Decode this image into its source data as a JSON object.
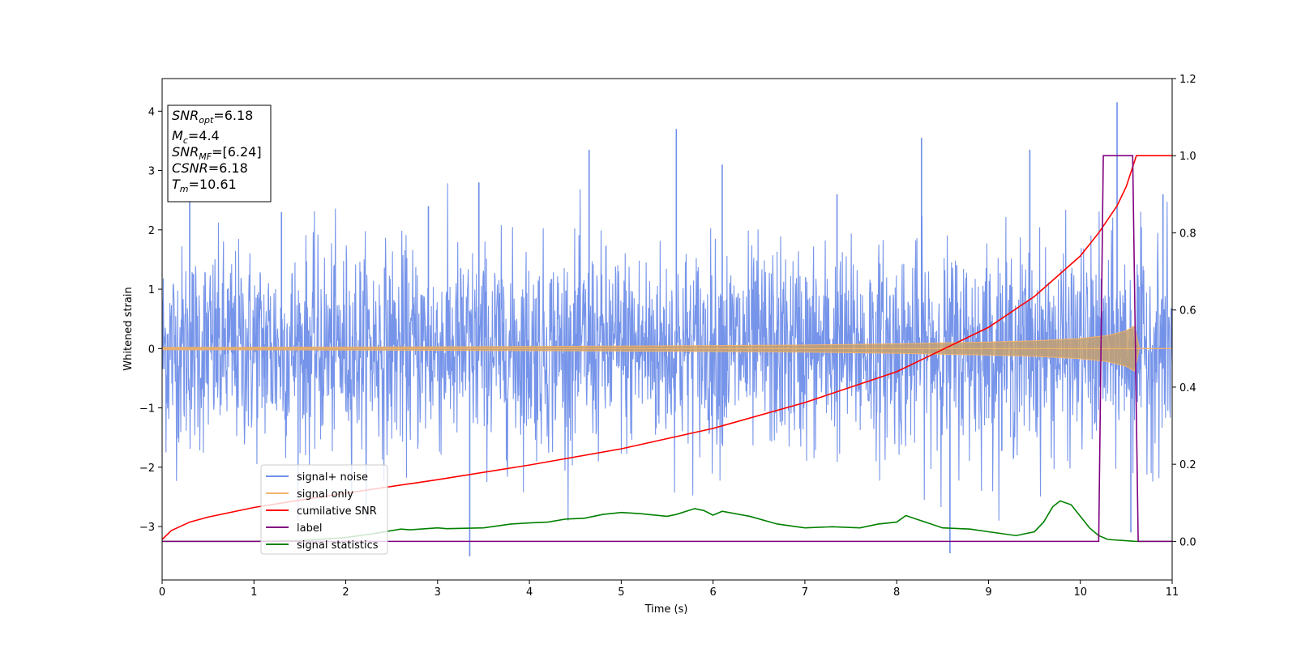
{
  "chart_data": {
    "type": "line",
    "xlabel": "Time (s)",
    "ylabel": "Whitened strain",
    "xlim": [
      0,
      11
    ],
    "ylim_left": [
      -3.9,
      4.55
    ],
    "ylim_right": [
      -0.1,
      1.2
    ],
    "x_ticks": [
      "0",
      "1",
      "2",
      "3",
      "4",
      "5",
      "6",
      "7",
      "8",
      "9",
      "10",
      "11"
    ],
    "y_left_ticks": [
      {
        "value": 4,
        "label": "4"
      },
      {
        "value": 3,
        "label": "3"
      },
      {
        "value": 2,
        "label": "2"
      },
      {
        "value": 1,
        "label": "1"
      },
      {
        "value": 0,
        "label": "0"
      },
      {
        "value": -1,
        "label": "−1"
      },
      {
        "value": -2,
        "label": "−2"
      },
      {
        "value": -3,
        "label": "−3"
      }
    ],
    "y_right_ticks": [
      {
        "value": 1.2,
        "label": "1.2"
      },
      {
        "value": 1.0,
        "label": "1.0"
      },
      {
        "value": 0.8,
        "label": "0.8"
      },
      {
        "value": 0.6,
        "label": "0.6"
      },
      {
        "value": 0.4,
        "label": "0.4"
      },
      {
        "value": 0.2,
        "label": "0.2"
      },
      {
        "value": 0.0,
        "label": "0.0"
      }
    ],
    "annotation": {
      "lines": [
        {
          "var": "SNR",
          "sub": "opt",
          "value": "=6.18"
        },
        {
          "var": "M",
          "sub": "c",
          "value": "=4.4"
        },
        {
          "var": "SNR",
          "sub": "MF",
          "value": "=[6.24]"
        },
        {
          "var": "CSNR",
          "sub": "",
          "value": "=6.18"
        },
        {
          "var": "T",
          "sub": "m",
          "value": "=10.61"
        }
      ]
    },
    "series": [
      {
        "name": "signal+ noise",
        "axis": "left",
        "color": "#6f8ee8",
        "kind": "noise",
        "noise_sigma": 0.85,
        "spikes": [
          {
            "x": 0.3,
            "y": 2.8
          },
          {
            "x": 1.3,
            "y": 2.3
          },
          {
            "x": 2.9,
            "y": 2.4
          },
          {
            "x": 3.35,
            "y": -3.5
          },
          {
            "x": 3.45,
            "y": 2.8
          },
          {
            "x": 4.65,
            "y": 3.35
          },
          {
            "x": 5.6,
            "y": 3.7
          },
          {
            "x": 6.1,
            "y": 3.1
          },
          {
            "x": 7.35,
            "y": 2.6
          },
          {
            "x": 8.27,
            "y": 3.55
          },
          {
            "x": 8.58,
            "y": -3.45
          },
          {
            "x": 9.45,
            "y": 3.35
          },
          {
            "x": 10.4,
            "y": 4.15
          },
          {
            "x": 10.55,
            "y": -3.1
          },
          {
            "x": 10.9,
            "y": 2.6
          }
        ]
      },
      {
        "name": "signal only",
        "axis": "left",
        "color": "#f3b26a",
        "kind": "chirp_envelope",
        "points": [
          [
            0,
            0.02
          ],
          [
            2,
            0.025
          ],
          [
            4,
            0.035
          ],
          [
            6,
            0.05
          ],
          [
            7,
            0.06
          ],
          [
            8,
            0.08
          ],
          [
            9,
            0.11
          ],
          [
            9.5,
            0.13
          ],
          [
            10,
            0.17
          ],
          [
            10.3,
            0.22
          ],
          [
            10.5,
            0.3
          ],
          [
            10.61,
            0.4
          ],
          [
            10.62,
            0.0
          ],
          [
            11,
            0.0
          ]
        ]
      },
      {
        "name": "cumilative SNR",
        "axis": "right",
        "color": "#ff0000",
        "points": [
          [
            0,
            0.005
          ],
          [
            0.1,
            0.028
          ],
          [
            0.3,
            0.05
          ],
          [
            0.5,
            0.063
          ],
          [
            1,
            0.088
          ],
          [
            1.5,
            0.107
          ],
          [
            2,
            0.125
          ],
          [
            3,
            0.16
          ],
          [
            4,
            0.198
          ],
          [
            5,
            0.24
          ],
          [
            6,
            0.293
          ],
          [
            7,
            0.36
          ],
          [
            8,
            0.44
          ],
          [
            9,
            0.555
          ],
          [
            9.5,
            0.635
          ],
          [
            10,
            0.74
          ],
          [
            10.2,
            0.8
          ],
          [
            10.4,
            0.87
          ],
          [
            10.5,
            0.92
          ],
          [
            10.61,
            1.0
          ],
          [
            11,
            1.0
          ]
        ]
      },
      {
        "name": "label",
        "axis": "right",
        "color": "#800080",
        "points": [
          [
            0,
            0.0
          ],
          [
            10.2,
            0.0
          ],
          [
            10.25,
            1.0
          ],
          [
            10.57,
            1.0
          ],
          [
            10.63,
            0.0
          ],
          [
            11,
            0.0
          ]
        ]
      },
      {
        "name": "signal statistics",
        "axis": "right",
        "color": "#008000",
        "points": [
          [
            0,
            0.0
          ],
          [
            1,
            0.0
          ],
          [
            1.5,
            0.002
          ],
          [
            2.0,
            0.01
          ],
          [
            2.3,
            0.02
          ],
          [
            2.6,
            0.032
          ],
          [
            2.7,
            0.03
          ],
          [
            3,
            0.035
          ],
          [
            3.1,
            0.033
          ],
          [
            3.5,
            0.035
          ],
          [
            3.8,
            0.045
          ],
          [
            4,
            0.048
          ],
          [
            4.2,
            0.05
          ],
          [
            4.4,
            0.058
          ],
          [
            4.6,
            0.06
          ],
          [
            4.8,
            0.07
          ],
          [
            5.0,
            0.075
          ],
          [
            5.2,
            0.072
          ],
          [
            5.5,
            0.065
          ],
          [
            5.6,
            0.07
          ],
          [
            5.8,
            0.085
          ],
          [
            5.9,
            0.08
          ],
          [
            6.0,
            0.068
          ],
          [
            6.1,
            0.078
          ],
          [
            6.4,
            0.065
          ],
          [
            6.7,
            0.045
          ],
          [
            7.0,
            0.035
          ],
          [
            7.3,
            0.038
          ],
          [
            7.6,
            0.035
          ],
          [
            7.8,
            0.045
          ],
          [
            8.0,
            0.05
          ],
          [
            8.1,
            0.067
          ],
          [
            8.25,
            0.055
          ],
          [
            8.5,
            0.035
          ],
          [
            8.8,
            0.032
          ],
          [
            9.0,
            0.025
          ],
          [
            9.3,
            0.015
          ],
          [
            9.5,
            0.025
          ],
          [
            9.6,
            0.05
          ],
          [
            9.7,
            0.09
          ],
          [
            9.78,
            0.105
          ],
          [
            9.9,
            0.095
          ],
          [
            10.0,
            0.065
          ],
          [
            10.1,
            0.035
          ],
          [
            10.2,
            0.015
          ],
          [
            10.3,
            0.005
          ],
          [
            10.6,
            0.0
          ],
          [
            11,
            0.0
          ]
        ]
      }
    ],
    "legend": {
      "position": "lower-left"
    }
  }
}
